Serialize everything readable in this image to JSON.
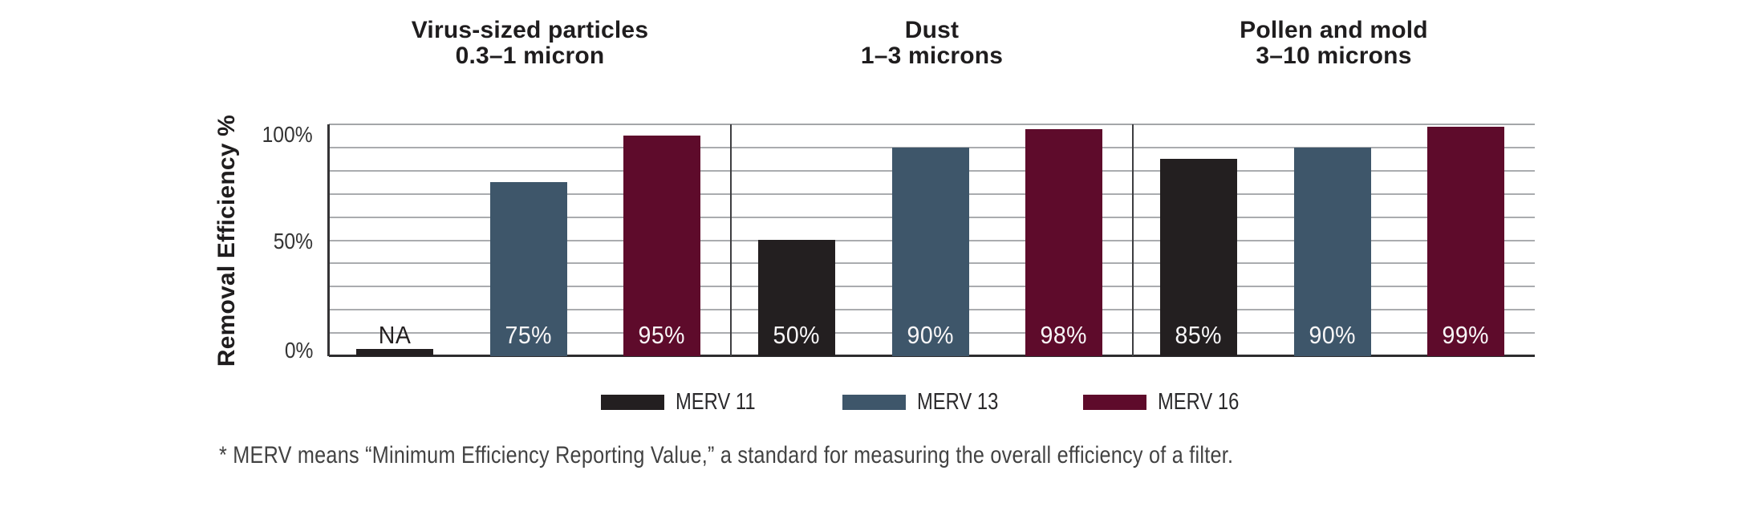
{
  "chart_data": {
    "type": "bar",
    "ylabel": "Removal Efficiency %",
    "ylim": [
      0,
      100
    ],
    "grid": true,
    "gridline_step_pct": 10,
    "yticks": [
      {
        "value": 100,
        "label": "100%"
      },
      {
        "value": 50,
        "label": "50%"
      },
      {
        "value": 0,
        "label": "0%"
      }
    ],
    "legend_position": "bottom",
    "series": [
      {
        "name": "MERV 11",
        "color": "#231f20"
      },
      {
        "name": "MERV 13",
        "color": "#3e566a"
      },
      {
        "name": "MERV 16",
        "color": "#5e0b2b"
      }
    ],
    "groups": [
      {
        "title": "Virus-sized particles",
        "subtitle": "0.3–1 micron",
        "values": [
          null,
          75,
          95
        ],
        "value_labels": [
          "NA",
          "75%",
          "95%"
        ]
      },
      {
        "title": "Dust",
        "subtitle": "1–3 microns",
        "values": [
          50,
          90,
          98
        ],
        "value_labels": [
          "50%",
          "90%",
          "98%"
        ]
      },
      {
        "title": "Pollen and mold",
        "subtitle": "3–10 microns",
        "values": [
          85,
          90,
          99
        ],
        "value_labels": [
          "85%",
          "90%",
          "99%"
        ]
      }
    ],
    "na_stub_height_pct": 3,
    "value_label_colors": {
      "inside_bar": "#f8f6f7",
      "outside_bar": "#231f20"
    }
  },
  "footnote": "* MERV means “Minimum Efficiency Reporting Value,” a standard for measuring the overall efficiency of a filter."
}
